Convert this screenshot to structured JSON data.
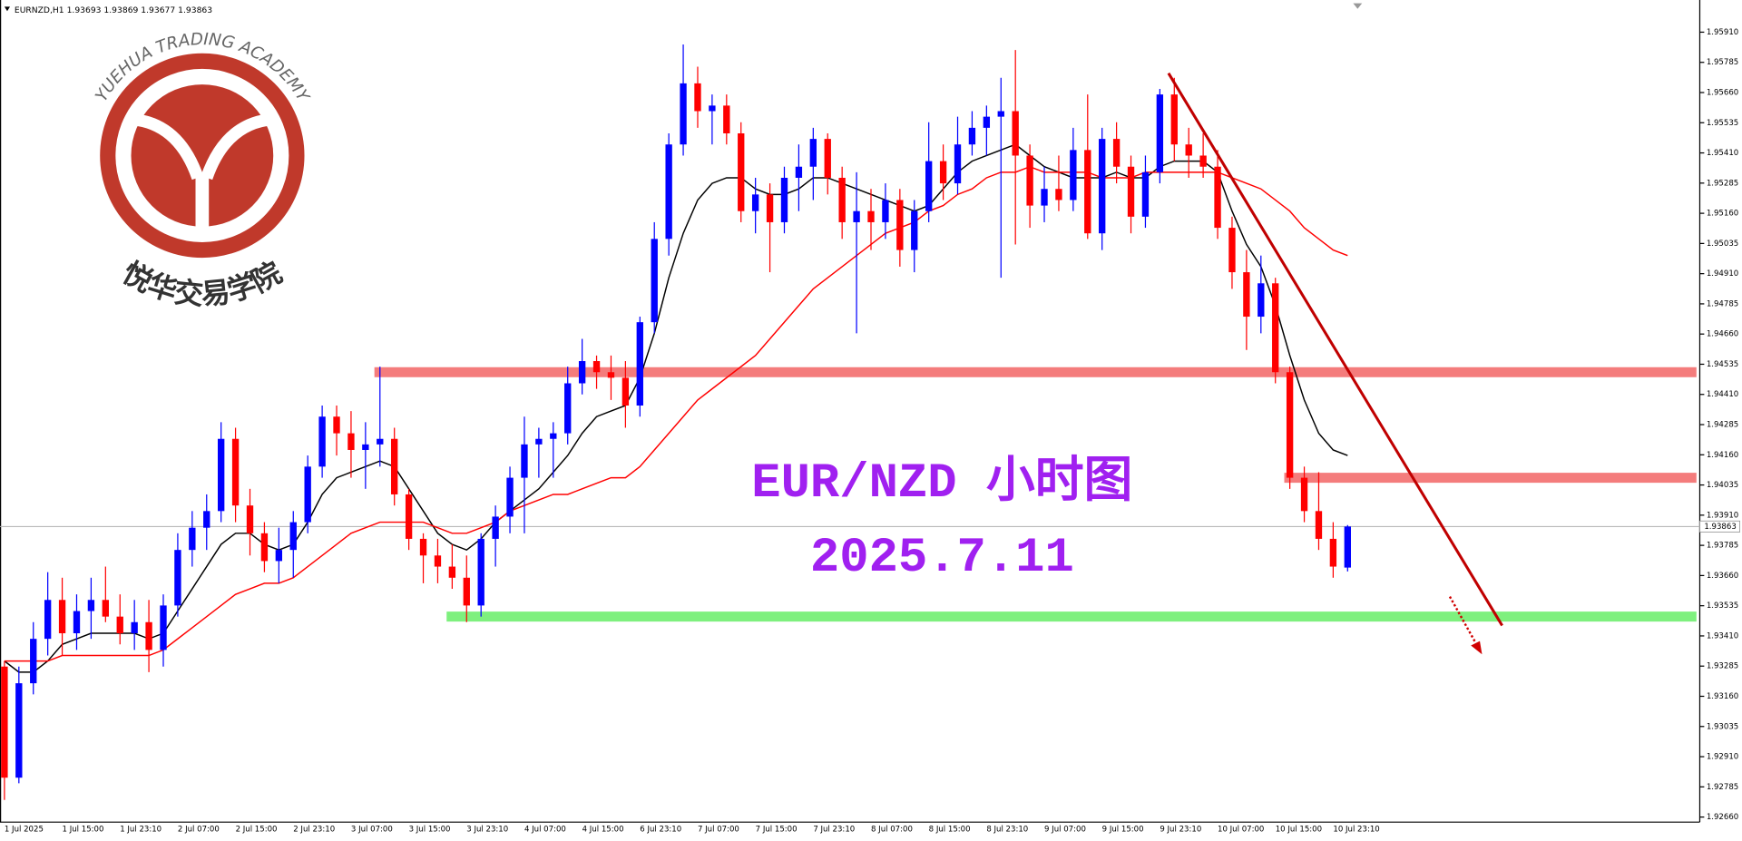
{
  "chart_data": {
    "type": "candlestick",
    "symbol": "EURNZD,H1",
    "title": "EUR/NZD 小时图",
    "subtitle": "2025.7.11",
    "categories": [
      "1 Jul 2025",
      null,
      null,
      null,
      "1 Jul 15:00",
      null,
      null,
      null,
      "1 Jul 23:10",
      null,
      null,
      null,
      "2 Jul 07:00",
      null,
      null,
      null,
      "2 Jul 15:00",
      null,
      null,
      null,
      "2 Jul 23:10",
      null,
      null,
      null,
      "3 Jul 07:00",
      null,
      null,
      null,
      "3 Jul 15:00",
      null,
      null,
      null,
      "3 Jul 23:10",
      null,
      null,
      null,
      "4 Jul 07:00",
      null,
      null,
      null,
      "4 Jul 15:00",
      null,
      null,
      null,
      "6 Jul 23:10",
      null,
      null,
      null,
      "7 Jul 07:00",
      null,
      null,
      null,
      "7 Jul 15:00",
      null,
      null,
      null,
      "7 Jul 23:10",
      null,
      null,
      null,
      "8 Jul 07:00",
      null,
      null,
      null,
      "8 Jul 15:00",
      null,
      null,
      null,
      "8 Jul 23:10",
      null,
      null,
      null,
      "9 Jul 07:00",
      null,
      null,
      null,
      "9 Jul 15:00",
      null,
      null,
      null,
      "9 Jul 23:10",
      null,
      null,
      null,
      "10 Jul 07:00",
      null,
      null,
      null,
      "10 Jul 15:00",
      null,
      null,
      null,
      "10 Jul 23:10",
      null
    ],
    "open": [
      1.93283,
      1.92823,
      1.93214,
      1.93398,
      1.93559,
      1.93421,
      1.93513,
      1.93559,
      1.9349,
      1.93421,
      1.93467,
      1.93352,
      1.93536,
      1.93766,
      1.93858,
      1.93927,
      1.94226,
      1.9395,
      1.93835,
      1.9372,
      1.93766,
      1.93881,
      1.94111,
      1.94318,
      1.94249,
      1.9418,
      1.94203,
      1.94226,
      1.93996,
      1.93812,
      1.93743,
      1.93697,
      1.93651,
      1.93536,
      1.93812,
      1.93904,
      1.94065,
      1.94203,
      1.94226,
      1.94249,
      1.94456,
      1.94548,
      1.94502,
      1.94479,
      1.94364,
      1.94709,
      1.95054,
      1.95445,
      1.95698,
      1.95583,
      1.95606,
      1.95491,
      1.95169,
      1.95238,
      1.95123,
      1.95307,
      1.95353,
      1.95468,
      1.95307,
      1.95123,
      1.95169,
      1.95123,
      1.95215,
      1.95008,
      1.95169,
      1.95376,
      1.95284,
      1.95445,
      1.95514,
      1.9556,
      1.95583,
      1.95399,
      1.95192,
      1.95261,
      1.95215,
      1.95422,
      1.95077,
      1.95468,
      1.95353,
      1.95146,
      1.9533,
      1.95652,
      1.95445,
      1.95399,
      1.95353,
      1.951,
      1.94916,
      1.94732,
      1.9487,
      1.94502,
      1.94065,
      1.93927,
      1.93812,
      1.93693
    ],
    "high": [
      1.93306,
      1.93283,
      1.93467,
      1.93674,
      1.93651,
      1.93582,
      1.93651,
      1.93697,
      1.93582,
      1.93559,
      1.93559,
      1.93582,
      1.93835,
      1.93927,
      1.93996,
      1.94295,
      1.94272,
      1.94019,
      1.93881,
      1.93858,
      1.93927,
      1.94157,
      1.94364,
      1.94364,
      1.94341,
      1.94295,
      1.94525,
      1.94272,
      1.94019,
      1.93835,
      1.93812,
      1.93789,
      1.93743,
      1.93835,
      1.9395,
      1.94111,
      1.94318,
      1.94272,
      1.94295,
      1.94525,
      1.9464,
      1.94571,
      1.94571,
      1.94548,
      1.94732,
      1.95123,
      1.95491,
      1.95859,
      1.95767,
      1.95652,
      1.95652,
      1.95537,
      1.95307,
      1.95284,
      1.95353,
      1.95445,
      1.95514,
      1.95491,
      1.95353,
      1.9533,
      1.95261,
      1.95284,
      1.95261,
      1.95215,
      1.95537,
      1.95445,
      1.9556,
      1.95583,
      1.95606,
      1.95721,
      1.95836,
      1.95445,
      1.95353,
      1.95399,
      1.95514,
      1.95652,
      1.95514,
      1.95537,
      1.95399,
      1.95399,
      1.95675,
      1.95721,
      1.95514,
      1.95491,
      1.95422,
      1.95146,
      1.95008,
      1.94985,
      1.94893,
      1.94525,
      1.94111,
      1.94088,
      1.93881,
      1.93869
    ],
    "low": [
      1.92731,
      1.928,
      1.93168,
      1.93329,
      1.93329,
      1.93352,
      1.93398,
      1.93467,
      1.93375,
      1.93352,
      1.9326,
      1.93283,
      1.9349,
      1.93697,
      1.93766,
      1.93881,
      1.93881,
      1.93743,
      1.93674,
      1.93628,
      1.93651,
      1.93835,
      1.94065,
      1.94157,
      1.94065,
      1.94019,
      1.94111,
      1.9395,
      1.93766,
      1.93628,
      1.93628,
      1.93605,
      1.93467,
      1.9349,
      1.93697,
      1.93835,
      1.93835,
      1.94065,
      1.94065,
      1.94203,
      1.9441,
      1.94433,
      1.94387,
      1.94272,
      1.94318,
      1.94663,
      1.94985,
      1.95399,
      1.95514,
      1.95445,
      1.95445,
      1.95123,
      1.95077,
      1.94916,
      1.95077,
      1.95169,
      1.95215,
      1.95238,
      1.95054,
      1.94663,
      1.95008,
      1.95054,
      1.94939,
      1.94916,
      1.95123,
      1.95215,
      1.95238,
      1.95399,
      1.95399,
      1.94893,
      1.95031,
      1.951,
      1.95123,
      1.95169,
      1.95169,
      1.95054,
      1.95008,
      1.95284,
      1.95077,
      1.951,
      1.95284,
      1.95376,
      1.95307,
      1.95307,
      1.95054,
      1.94847,
      1.94594,
      1.94663,
      1.94456,
      1.94019,
      1.93881,
      1.93766,
      1.93651,
      1.93677
    ],
    "close": [
      1.92823,
      1.93214,
      1.93398,
      1.93559,
      1.93421,
      1.93513,
      1.93559,
      1.9349,
      1.93421,
      1.93467,
      1.93352,
      1.93536,
      1.93766,
      1.93858,
      1.93927,
      1.94226,
      1.9395,
      1.93835,
      1.9372,
      1.93766,
      1.93881,
      1.94111,
      1.94318,
      1.94249,
      1.9418,
      1.94203,
      1.94226,
      1.93996,
      1.93812,
      1.93743,
      1.93697,
      1.93651,
      1.93536,
      1.93812,
      1.93904,
      1.94065,
      1.94203,
      1.94226,
      1.94249,
      1.94456,
      1.94548,
      1.94502,
      1.94479,
      1.94364,
      1.94709,
      1.95054,
      1.95445,
      1.95698,
      1.95583,
      1.95606,
      1.95491,
      1.95169,
      1.95238,
      1.95123,
      1.95307,
      1.95353,
      1.95468,
      1.95307,
      1.95123,
      1.95169,
      1.95123,
      1.95215,
      1.95008,
      1.95169,
      1.95376,
      1.95284,
      1.95445,
      1.95514,
      1.9556,
      1.95583,
      1.95399,
      1.95192,
      1.95261,
      1.95215,
      1.95422,
      1.95077,
      1.95468,
      1.95353,
      1.95146,
      1.9533,
      1.95652,
      1.95445,
      1.95399,
      1.95353,
      1.951,
      1.94916,
      1.94732,
      1.9487,
      1.94502,
      1.94065,
      1.93927,
      1.93812,
      1.93697,
      1.93863
    ],
    "up_color": "#0000ff",
    "down_color": "#ff0000",
    "series": [
      {
        "color": "#000000",
        "values": [
          1.93306,
          1.9326,
          1.9326,
          1.93306,
          1.93375,
          1.93398,
          1.93421,
          1.93421,
          1.93421,
          1.93421,
          1.93398,
          1.93421,
          1.93513,
          1.93605,
          1.93697,
          1.93789,
          1.93835,
          1.93835,
          1.93789,
          1.93766,
          1.93789,
          1.93881,
          1.93996,
          1.94065,
          1.94088,
          1.94111,
          1.94134,
          1.94111,
          1.94019,
          1.93927,
          1.93835,
          1.93789,
          1.93766,
          1.93812,
          1.93881,
          1.93927,
          1.93973,
          1.94019,
          1.94088,
          1.94157,
          1.94249,
          1.94318,
          1.94341,
          1.94364,
          1.94479,
          1.94663,
          1.94893,
          1.95077,
          1.95215,
          1.95284,
          1.95307,
          1.95307,
          1.95261,
          1.95238,
          1.95238,
          1.95261,
          1.95307,
          1.95307,
          1.95284,
          1.95261,
          1.95238,
          1.95215,
          1.95192,
          1.95169,
          1.95192,
          1.95261,
          1.9533,
          1.95376,
          1.95399,
          1.95422,
          1.95445,
          1.95399,
          1.95353,
          1.9533,
          1.95307,
          1.95307,
          1.95307,
          1.9533,
          1.95307,
          1.95307,
          1.95353,
          1.95376,
          1.95376,
          1.95376,
          1.9533,
          1.95169,
          1.95031,
          1.94939,
          1.94778,
          1.94571,
          1.94387,
          1.94249,
          1.9418,
          1.94157
        ]
      },
      {
        "color": "#ff0000",
        "values": [
          1.93306,
          1.93306,
          1.93306,
          1.93306,
          1.93329,
          1.93329,
          1.93329,
          1.93329,
          1.93329,
          1.93329,
          1.93329,
          1.93352,
          1.93398,
          1.93444,
          1.9349,
          1.93536,
          1.93582,
          1.93605,
          1.93628,
          1.93628,
          1.93651,
          1.93697,
          1.93743,
          1.93789,
          1.93835,
          1.93858,
          1.93881,
          1.93881,
          1.93881,
          1.93881,
          1.93858,
          1.93835,
          1.93835,
          1.93858,
          1.93881,
          1.93927,
          1.9395,
          1.93973,
          1.93996,
          1.93996,
          1.94019,
          1.94042,
          1.94065,
          1.94065,
          1.94111,
          1.9418,
          1.94249,
          1.94318,
          1.94387,
          1.94433,
          1.94479,
          1.94525,
          1.94571,
          1.9464,
          1.94709,
          1.94778,
          1.94847,
          1.94893,
          1.94939,
          1.94985,
          1.95031,
          1.95077,
          1.951,
          1.95123,
          1.95169,
          1.95192,
          1.95238,
          1.95261,
          1.95307,
          1.9533,
          1.9533,
          1.95353,
          1.9533,
          1.9533,
          1.9533,
          1.9533,
          1.95307,
          1.95307,
          1.95307,
          1.9533,
          1.9533,
          1.9533,
          1.9533,
          1.9533,
          1.9533,
          1.95307,
          1.95284,
          1.95261,
          1.95215,
          1.95169,
          1.951,
          1.95054,
          1.95008,
          1.94985
        ]
      }
    ],
    "levels": [
      {
        "price": 1.94502,
        "from": 26,
        "color": "#f47c7c"
      },
      {
        "price": 1.94065,
        "from": 89,
        "color": "#f47c7c"
      },
      {
        "price": 1.9349,
        "from": 31,
        "color": "#7ef07e"
      }
    ],
    "trendline": {
      "x": [
        80.6,
        103.7
      ],
      "y": [
        1.9574,
        1.93453
      ],
      "color": "#c00000"
    },
    "ylim": [
      1.92639,
      1.96034
    ],
    "yticks": [
      {
        "value": 1.9591,
        "label": "1.95910"
      },
      1.95785,
      {
        "value": 1.9566,
        "label": "1.95660"
      },
      1.95535,
      {
        "value": 1.9541,
        "label": "1.95410"
      },
      1.95285,
      {
        "value": 1.9516,
        "label": "1.95160"
      },
      1.95035,
      {
        "value": 1.9491,
        "label": "1.94910"
      },
      1.94785,
      {
        "value": 1.9466,
        "label": "1.94660"
      },
      1.94535,
      {
        "value": 1.9441,
        "label": "1.94410"
      },
      1.94285,
      {
        "value": 1.9416,
        "label": "1.94160"
      },
      1.94035,
      {
        "value": 1.9391,
        "label": "1.93910"
      },
      1.93785,
      {
        "value": 1.9366,
        "label": "1.93660"
      },
      1.93535,
      {
        "value": 1.9341,
        "label": "1.93410"
      },
      1.93285,
      {
        "value": 1.9316,
        "label": "1.93160"
      },
      1.93035,
      {
        "value": 1.9291,
        "label": "1.92910"
      },
      1.92785,
      {
        "value": 1.9266,
        "label": "1.92660"
      }
    ],
    "grid": false
  },
  "logo": {
    "name_en": "YUEHUA TRADING ACADEMY",
    "name_cn": "悦华交易学院"
  }
}
